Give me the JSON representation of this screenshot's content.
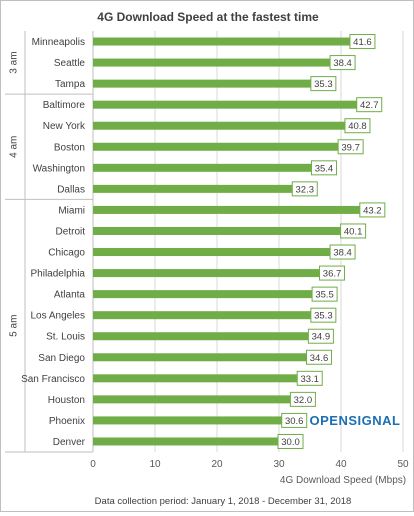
{
  "chart_data": {
    "type": "bar",
    "orientation": "horizontal",
    "title": "4G Download Speed at the fastest time",
    "xlabel": "4G Download Speed (Mbps)",
    "xlim": [
      0,
      50
    ],
    "x_ticks": [
      0,
      10,
      20,
      30,
      40,
      50
    ],
    "gridlines": true,
    "bar_color": "#70ad47",
    "groups": [
      {
        "label": "3 am",
        "start": 0,
        "end": 2
      },
      {
        "label": "4 am",
        "start": 3,
        "end": 7
      },
      {
        "label": "5 am",
        "start": 8,
        "end": 19
      }
    ],
    "categories": [
      "Minneapolis",
      "Seattle",
      "Tampa",
      "Baltimore",
      "New York",
      "Boston",
      "Washington",
      "Dallas",
      "Miami",
      "Detroit",
      "Chicago",
      "Philadelphia",
      "Atlanta",
      "Los Angeles",
      "St. Louis",
      "San Diego",
      "San Francisco",
      "Houston",
      "Phoenix",
      "Denver"
    ],
    "values": [
      41.6,
      38.4,
      35.3,
      42.7,
      40.8,
      39.7,
      35.4,
      32.3,
      43.2,
      40.1,
      38.4,
      36.7,
      35.5,
      35.3,
      34.9,
      34.6,
      33.1,
      32.0,
      30.6,
      30.0
    ],
    "value_labels": [
      "41.6",
      "38.4",
      "35.3",
      "42.7",
      "40.8",
      "39.7",
      "35.4",
      "32.3",
      "43.2",
      "40.1",
      "38.4",
      "36.7",
      "35.5",
      "35.3",
      "34.9",
      "34.6",
      "33.1",
      "32.0",
      "30.6",
      "30.0"
    ]
  },
  "footnote": "Data collection period: January 1, 2018 - December 31, 2018",
  "logo": {
    "text": "OPENSIGNAL",
    "color": "#1a6fb5"
  }
}
